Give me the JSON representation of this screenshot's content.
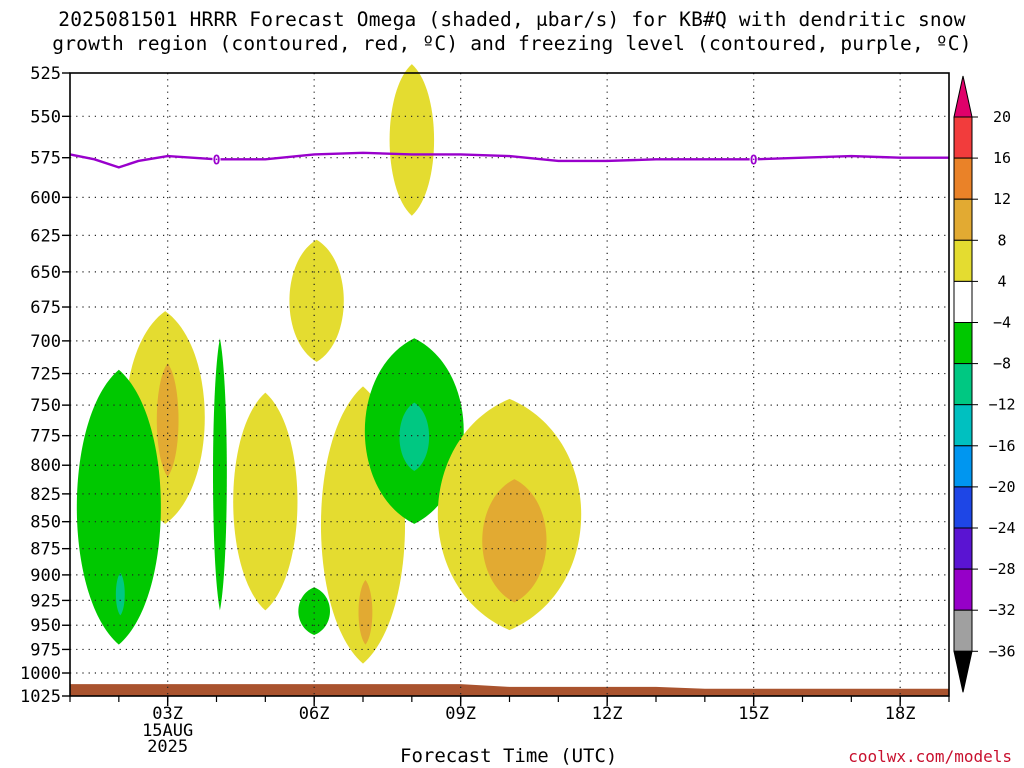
{
  "title": {
    "line1": "2025081501 HRRR Forecast Omega (shaded, μbar/s) for KB#Q with dendritic snow",
    "line2": "growth region (contoured, red, ºC) and freezing level (contoured, purple, ºC)"
  },
  "credit": "coolwx.com/models",
  "chart_data": {
    "type": "contour",
    "xlabel": "Forecast Time (UTC)",
    "ylabel": "",
    "xlim": [
      1,
      19
    ],
    "ylim": [
      1025,
      525
    ],
    "y_ticks": [
      525,
      550,
      575,
      600,
      625,
      650,
      675,
      700,
      725,
      750,
      775,
      800,
      825,
      850,
      875,
      900,
      925,
      950,
      975,
      1000,
      1025
    ],
    "x_ticks": [
      {
        "x": 3,
        "label": "03Z"
      },
      {
        "x": 6,
        "label": "06Z"
      },
      {
        "x": 9,
        "label": "09Z"
      },
      {
        "x": 12,
        "label": "12Z"
      },
      {
        "x": 15,
        "label": "15Z"
      },
      {
        "x": 18,
        "label": "18Z"
      }
    ],
    "date_label": [
      "15AUG",
      "2025"
    ],
    "grid": true,
    "colorbar": {
      "levels": [
        "20",
        "16",
        "12",
        "8",
        "4",
        "−4",
        "−8",
        "−12",
        "−16",
        "−20",
        "−24",
        "−28",
        "−32",
        "−36"
      ],
      "colors": [
        "#e0006a",
        "#f23c3c",
        "#ea8228",
        "#e2aa32",
        "#e4dc30",
        "#ffffff",
        "#00c800",
        "#00c882",
        "#00c0c0",
        "#0096f0",
        "#1e46e6",
        "#5a14d2",
        "#9600c8",
        "#a0a0a0",
        "#000000"
      ]
    },
    "freezing_level": {
      "color": "#9900cc",
      "label": "0",
      "points": [
        [
          1,
          573
        ],
        [
          1.5,
          576
        ],
        [
          2,
          581
        ],
        [
          2.4,
          577
        ],
        [
          3,
          574
        ],
        [
          4,
          576
        ],
        [
          5,
          576
        ],
        [
          6,
          573
        ],
        [
          7,
          572
        ],
        [
          8,
          573
        ],
        [
          9,
          573
        ],
        [
          10,
          574
        ],
        [
          11,
          577
        ],
        [
          12,
          577
        ],
        [
          13,
          576
        ],
        [
          14,
          576
        ],
        [
          15,
          576
        ],
        [
          16,
          575
        ],
        [
          17,
          574
        ],
        [
          18,
          575
        ],
        [
          19,
          575
        ]
      ],
      "label_positions": [
        [
          4,
          576
        ],
        [
          15,
          576
        ]
      ]
    },
    "omega_regions": [
      {
        "value_range": [
          4,
          8
        ],
        "color": "#e4dc30",
        "x": 8.0,
        "p_top": 520,
        "p_bot": 612,
        "half_width": 0.45
      },
      {
        "value_range": [
          4,
          8
        ],
        "color": "#e4dc30",
        "x": 6.05,
        "p_top": 628,
        "p_bot": 716,
        "half_width": 0.55
      },
      {
        "value_range": [
          4,
          8
        ],
        "color": "#e4dc30",
        "x": 2.95,
        "p_top": 678,
        "p_bot": 852,
        "half_width": 0.8
      },
      {
        "value_range": [
          8,
          12
        ],
        "color": "#e2aa32",
        "x": 3.0,
        "p_top": 717,
        "p_bot": 810,
        "half_width": 0.22
      },
      {
        "value_range": [
          -8,
          -4
        ],
        "color": "#00c800",
        "x": 4.07,
        "p_top": 698,
        "p_bot": 935,
        "half_width": 0.14
      },
      {
        "value_range": [
          4,
          8
        ],
        "color": "#e4dc30",
        "x": 5.0,
        "p_top": 740,
        "p_bot": 935,
        "half_width": 0.65
      },
      {
        "value_range": [
          -8,
          -4
        ],
        "color": "#00c800",
        "x": 2.0,
        "p_top": 722,
        "p_bot": 970,
        "half_width": 0.85
      },
      {
        "value_range": [
          -12,
          -8
        ],
        "color": "#00c882",
        "x": 2.03,
        "p_top": 898,
        "p_bot": 940,
        "half_width": 0.09
      },
      {
        "value_range": [
          -8,
          -4
        ],
        "color": "#00c800",
        "x": 6.0,
        "p_top": 912,
        "p_bot": 960,
        "half_width": 0.32
      },
      {
        "value_range": [
          4,
          8
        ],
        "color": "#e4dc30",
        "x": 7.0,
        "p_top": 735,
        "p_bot": 990,
        "half_width": 0.85
      },
      {
        "value_range": [
          8,
          12
        ],
        "color": "#e2aa32",
        "x": 7.05,
        "p_top": 905,
        "p_bot": 970,
        "half_width": 0.14
      },
      {
        "value_range": [
          -8,
          -4
        ],
        "color": "#00c800",
        "x": 8.05,
        "p_top": 698,
        "p_bot": 852,
        "half_width": 1.0
      },
      {
        "value_range": [
          -12,
          -8
        ],
        "color": "#00c882",
        "x": 8.05,
        "p_top": 748,
        "p_bot": 805,
        "half_width": 0.3
      },
      {
        "value_range": [
          4,
          8
        ],
        "color": "#e4dc30",
        "x": 10.0,
        "p_top": 745,
        "p_bot": 955,
        "half_width": 1.45
      },
      {
        "value_range": [
          8,
          12
        ],
        "color": "#e2aa32",
        "x": 10.1,
        "p_top": 812,
        "p_bot": 927,
        "half_width": 0.65
      }
    ],
    "terrain": {
      "color": "#a9532e",
      "points": [
        [
          1,
          1012
        ],
        [
          9,
          1012
        ],
        [
          10,
          1015
        ],
        [
          13,
          1015
        ],
        [
          14,
          1017
        ],
        [
          19,
          1017
        ]
      ]
    }
  }
}
